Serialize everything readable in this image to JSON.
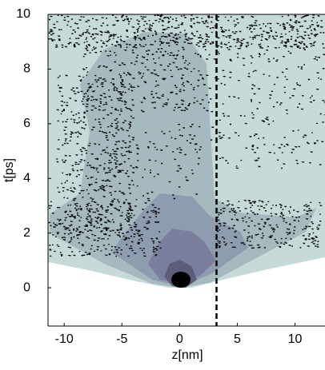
{
  "chart_data": {
    "type": "contour",
    "xlabel": "z[nm]",
    "ylabel": "t[ps]",
    "xlim": [
      -11.4,
      12.6
    ],
    "ylim": [
      -1.4,
      10
    ],
    "xticks": [
      -10,
      -5,
      0,
      5,
      10
    ],
    "yticks": [
      0,
      2,
      4,
      6,
      8,
      10
    ],
    "vline": {
      "x": 3.2,
      "style": "dashed",
      "color": "#000000"
    }
  }
}
